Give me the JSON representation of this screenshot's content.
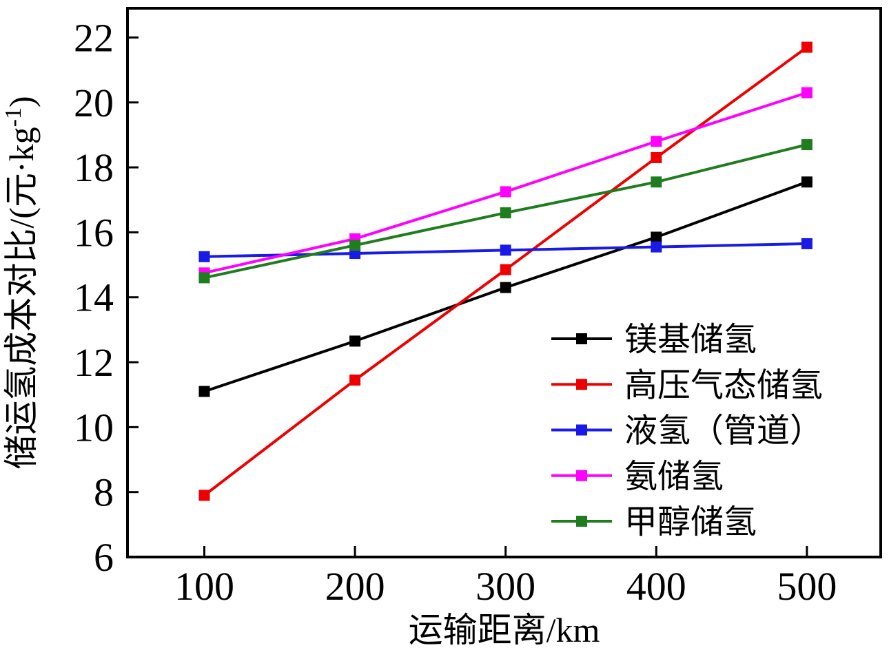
{
  "figure": {
    "background": "#ffffff",
    "frame_color": "#000000"
  },
  "chart_data": {
    "type": "line",
    "title": "",
    "xlabel": "运输距离/km",
    "ylabel": "储运氢成本对比/(元·kg⁻¹)",
    "ylabel_parts": {
      "main": "储运氢成本对比/(元·kg",
      "sup": "-1",
      "end": ")"
    },
    "x": [
      100,
      200,
      300,
      400,
      500
    ],
    "xticks": [
      100,
      200,
      300,
      400,
      500
    ],
    "yticks": [
      6,
      8,
      10,
      12,
      14,
      16,
      18,
      20,
      22
    ],
    "xlim": [
      49,
      549
    ],
    "ylim": [
      6,
      22.9
    ],
    "grid": false,
    "marker": "square",
    "legend_position": "inside-lower-right",
    "series": [
      {
        "name": "镁基储氢",
        "color": "#000000",
        "values": [
          11.1,
          12.65,
          14.3,
          15.85,
          17.55
        ]
      },
      {
        "name": "高压气态储氢",
        "color": "#ee0000",
        "values": [
          7.9,
          11.45,
          14.85,
          18.3,
          21.7
        ]
      },
      {
        "name": "液氢（管道）",
        "color": "#1a1ae6",
        "values": [
          15.25,
          15.35,
          15.45,
          15.55,
          15.65
        ]
      },
      {
        "name": "氨储氢",
        "color": "#ff00ff",
        "values": [
          14.75,
          15.8,
          17.25,
          18.8,
          20.3
        ]
      },
      {
        "name": "甲醇储氢",
        "color": "#1f7d1f",
        "values": [
          14.6,
          15.6,
          16.6,
          17.55,
          18.7
        ]
      }
    ]
  }
}
